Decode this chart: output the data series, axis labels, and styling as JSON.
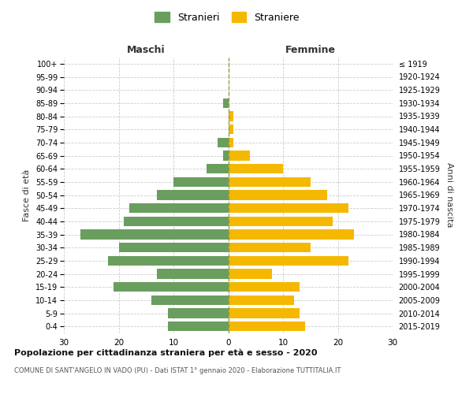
{
  "age_groups": [
    "0-4",
    "5-9",
    "10-14",
    "15-19",
    "20-24",
    "25-29",
    "30-34",
    "35-39",
    "40-44",
    "45-49",
    "50-54",
    "55-59",
    "60-64",
    "65-69",
    "70-74",
    "75-79",
    "80-84",
    "85-89",
    "90-94",
    "95-99",
    "100+"
  ],
  "birth_years": [
    "2015-2019",
    "2010-2014",
    "2005-2009",
    "2000-2004",
    "1995-1999",
    "1990-1994",
    "1985-1989",
    "1980-1984",
    "1975-1979",
    "1970-1974",
    "1965-1969",
    "1960-1964",
    "1955-1959",
    "1950-1954",
    "1945-1949",
    "1940-1944",
    "1935-1939",
    "1930-1934",
    "1925-1929",
    "1920-1924",
    "≤ 1919"
  ],
  "males": [
    11,
    11,
    14,
    21,
    13,
    22,
    20,
    27,
    19,
    18,
    13,
    10,
    4,
    1,
    2,
    0,
    0,
    1,
    0,
    0,
    0
  ],
  "females": [
    14,
    13,
    12,
    13,
    8,
    22,
    15,
    23,
    19,
    22,
    18,
    15,
    10,
    4,
    1,
    1,
    1,
    0,
    0,
    0,
    0
  ],
  "male_color": "#6a9e5e",
  "female_color": "#f5b800",
  "grid_color": "#cccccc",
  "zeroline_color": "#999944",
  "title1": "Popolazione per cittadinanza straniera per età e sesso - 2020",
  "title2": "COMUNE DI SANT'ANGELO IN VADO (PU) - Dati ISTAT 1° gennaio 2020 - Elaborazione TUTTITALIA.IT",
  "label_maschi": "Maschi",
  "label_femmine": "Femmine",
  "ylabel_left": "Fasce di età",
  "ylabel_right": "Anni di nascita",
  "legend_male": "Stranieri",
  "legend_female": "Straniere",
  "xlim": 30,
  "bar_height": 0.75
}
